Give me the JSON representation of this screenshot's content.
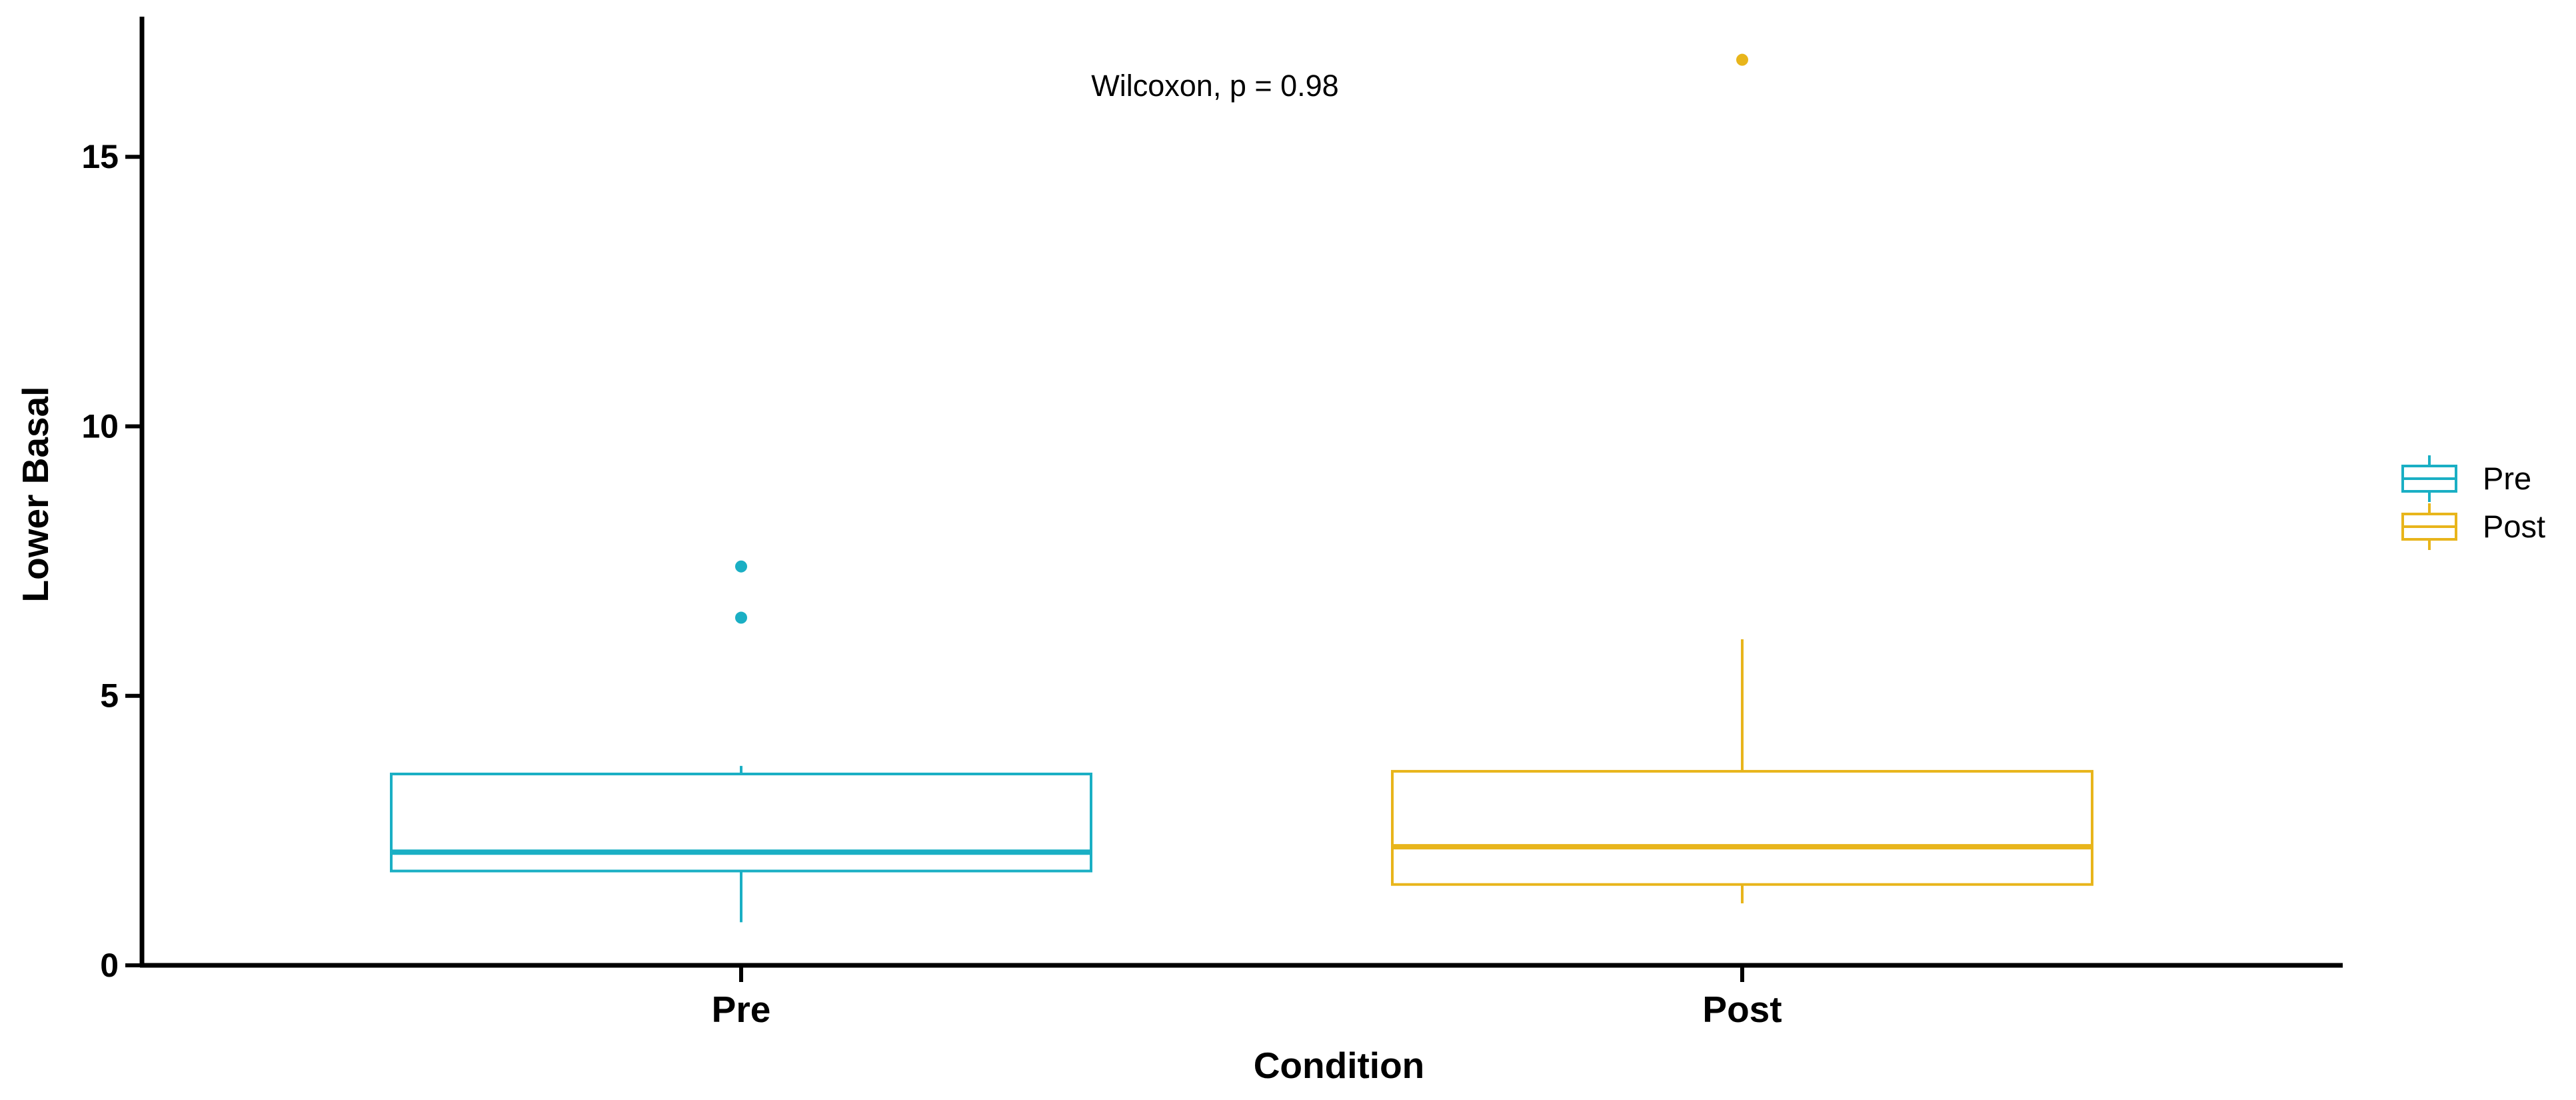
{
  "chart_data": {
    "type": "boxplot",
    "xlabel": "Condition",
    "ylabel": "Lower Basal",
    "ylim": [
      0,
      17.6
    ],
    "yticks": [
      0,
      5,
      10,
      15
    ],
    "categories": [
      "Pre",
      "Post"
    ],
    "series": [
      {
        "name": "Pre",
        "color": "#1AAFC4",
        "min": 0.8,
        "q1": 1.75,
        "median": 2.1,
        "q3": 3.55,
        "max": 3.7,
        "outliers": [
          6.45,
          7.4
        ]
      },
      {
        "name": "Post",
        "color": "#E8B51B",
        "min": 1.15,
        "q1": 1.5,
        "median": 2.2,
        "q3": 3.6,
        "max": 6.05,
        "outliers": [
          16.8
        ]
      }
    ],
    "annotations": [
      {
        "text": "Wilcoxon, p = 0.98",
        "x_between": [
          "Pre",
          "Post"
        ],
        "y": 16.3
      }
    ],
    "legend": {
      "position": "right",
      "entries": [
        "Pre",
        "Post"
      ]
    },
    "grid": false
  }
}
